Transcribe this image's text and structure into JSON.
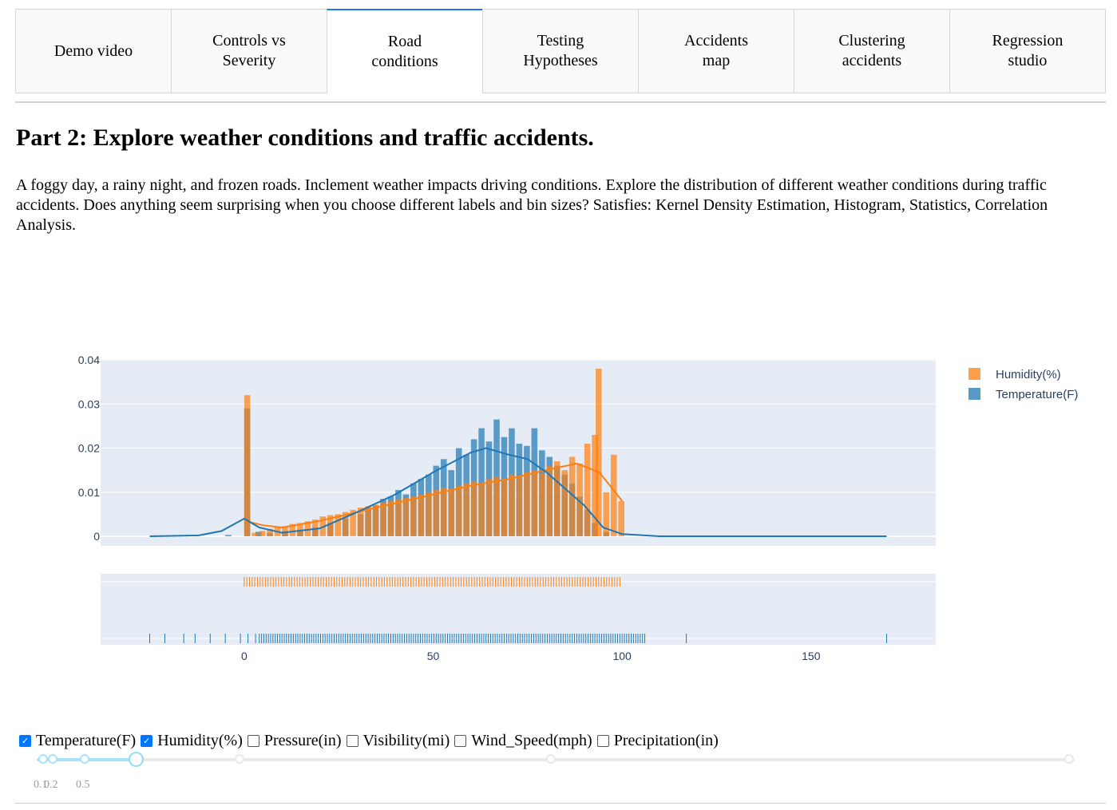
{
  "tabs": [
    {
      "label": "Demo video",
      "active": false
    },
    {
      "label": "Controls vs\nSeverity",
      "active": false
    },
    {
      "label": "Road\nconditions",
      "active": true
    },
    {
      "label": "Testing\nHypotheses",
      "active": false
    },
    {
      "label": "Accidents\nmap",
      "active": false
    },
    {
      "label": "Clustering\naccidents",
      "active": false
    },
    {
      "label": "Regression\nstudio",
      "active": false
    }
  ],
  "heading": "Part 2: Explore weather conditions and traffic accidents.",
  "description": "A foggy day, a rainy night, and frozen roads. Inclement weather impacts driving conditions. Explore the distribution of different weather conditions during traffic accidents. Does anything seem surprising when you choose different labels and bin sizes? Satisfies: Kernel Density Estimation, Histogram, Statistics, Correlation Analysis.",
  "checkboxes": [
    {
      "label": "Temperature(F)",
      "checked": true
    },
    {
      "label": "Humidity(%)",
      "checked": true
    },
    {
      "label": "Pressure(in)",
      "checked": false
    },
    {
      "label": "Visibility(mi)",
      "checked": false
    },
    {
      "label": "Wind_Speed(mph)",
      "checked": false
    },
    {
      "label": "Precipitation(in)",
      "checked": false
    }
  ],
  "slider": {
    "selected_value": 0.5,
    "mark_labels": [
      "0.1",
      "0.2",
      "0.5"
    ]
  },
  "colors": {
    "humidity": "#ff7f0e",
    "temperature": "#1f77b4",
    "plot_bg": "#e5ecf6",
    "active_tab": "#1975fa"
  },
  "chart_data": {
    "type": "histogram",
    "legend": [
      "Humidity(%)",
      "Temperature(F)"
    ],
    "legend_position": "top-right",
    "xticks": [
      0,
      50,
      100,
      150
    ],
    "yticks": [
      "0",
      "0.01",
      "0.02",
      "0.03",
      "0.04"
    ],
    "xlim": [
      -38,
      183
    ],
    "ylim": [
      0,
      0.04
    ],
    "grid": true,
    "histnorm": "probability density",
    "bin_size": 0.5,
    "series": [
      {
        "name": "Humidity(%)",
        "color": "#ff7f0e",
        "bars": [
          [
            0,
            0.032
          ],
          [
            2,
            0.0008
          ],
          [
            4,
            0.0012
          ],
          [
            6,
            0.0017
          ],
          [
            8,
            0.002
          ],
          [
            10,
            0.0023
          ],
          [
            12,
            0.0028
          ],
          [
            14,
            0.003
          ],
          [
            16,
            0.0034
          ],
          [
            18,
            0.0038
          ],
          [
            20,
            0.0045
          ],
          [
            22,
            0.0048
          ],
          [
            24,
            0.005
          ],
          [
            26,
            0.0055
          ],
          [
            28,
            0.006
          ],
          [
            30,
            0.0065
          ],
          [
            32,
            0.0068
          ],
          [
            34,
            0.0072
          ],
          [
            36,
            0.0076
          ],
          [
            38,
            0.008
          ],
          [
            40,
            0.0084
          ],
          [
            42,
            0.0088
          ],
          [
            44,
            0.009
          ],
          [
            46,
            0.0095
          ],
          [
            48,
            0.01
          ],
          [
            50,
            0.0105
          ],
          [
            52,
            0.011
          ],
          [
            54,
            0.0108
          ],
          [
            56,
            0.0115
          ],
          [
            58,
            0.012
          ],
          [
            60,
            0.0125
          ],
          [
            62,
            0.012
          ],
          [
            64,
            0.013
          ],
          [
            66,
            0.0135
          ],
          [
            68,
            0.0128
          ],
          [
            70,
            0.014
          ],
          [
            72,
            0.0138
          ],
          [
            74,
            0.0145
          ],
          [
            76,
            0.015
          ],
          [
            78,
            0.0142
          ],
          [
            80,
            0.016
          ],
          [
            82,
            0.017
          ],
          [
            84,
            0.015
          ],
          [
            86,
            0.018
          ],
          [
            88,
            0.0165
          ],
          [
            90,
            0.021
          ],
          [
            92,
            0.023
          ],
          [
            93,
            0.038
          ],
          [
            95,
            0.01
          ],
          [
            97,
            0.0185
          ],
          [
            99,
            0.008
          ]
        ],
        "kde": [
          [
            0,
            0.0035
          ],
          [
            5,
            0.0025
          ],
          [
            10,
            0.002
          ],
          [
            20,
            0.0035
          ],
          [
            30,
            0.0055
          ],
          [
            40,
            0.0075
          ],
          [
            50,
            0.0095
          ],
          [
            60,
            0.0115
          ],
          [
            70,
            0.013
          ],
          [
            80,
            0.015
          ],
          [
            88,
            0.0165
          ],
          [
            94,
            0.0145
          ],
          [
            100,
            0.008
          ]
        ]
      },
      {
        "name": "Temperature(F)",
        "color": "#1f77b4",
        "bars": [
          [
            -5,
            0.0003
          ],
          [
            0,
            0.029
          ],
          [
            3,
            0.001
          ],
          [
            6,
            0.0008
          ],
          [
            10,
            0.0012
          ],
          [
            14,
            0.0015
          ],
          [
            18,
            0.002
          ],
          [
            22,
            0.003
          ],
          [
            26,
            0.004
          ],
          [
            30,
            0.005
          ],
          [
            32,
            0.0065
          ],
          [
            34,
            0.007
          ],
          [
            36,
            0.0085
          ],
          [
            38,
            0.009
          ],
          [
            40,
            0.0105
          ],
          [
            42,
            0.0095
          ],
          [
            44,
            0.012
          ],
          [
            46,
            0.013
          ],
          [
            48,
            0.014
          ],
          [
            50,
            0.016
          ],
          [
            52,
            0.0175
          ],
          [
            54,
            0.015
          ],
          [
            56,
            0.02
          ],
          [
            58,
            0.0185
          ],
          [
            60,
            0.022
          ],
          [
            62,
            0.0245
          ],
          [
            64,
            0.0215
          ],
          [
            66,
            0.0265
          ],
          [
            68,
            0.0225
          ],
          [
            70,
            0.0245
          ],
          [
            72,
            0.021
          ],
          [
            74,
            0.0205
          ],
          [
            76,
            0.0245
          ],
          [
            78,
            0.0195
          ],
          [
            80,
            0.018
          ],
          [
            82,
            0.016
          ],
          [
            84,
            0.014
          ],
          [
            86,
            0.012
          ],
          [
            88,
            0.009
          ],
          [
            90,
            0.006
          ],
          [
            92,
            0.003
          ],
          [
            95,
            0.001
          ]
        ],
        "kde": [
          [
            -25,
            0
          ],
          [
            -12,
            0.0002
          ],
          [
            -6,
            0.0012
          ],
          [
            0,
            0.004
          ],
          [
            4,
            0.002
          ],
          [
            10,
            0.0008
          ],
          [
            20,
            0.0018
          ],
          [
            30,
            0.0055
          ],
          [
            40,
            0.0095
          ],
          [
            50,
            0.0145
          ],
          [
            60,
            0.019
          ],
          [
            64,
            0.02
          ],
          [
            70,
            0.0185
          ],
          [
            75,
            0.0175
          ],
          [
            80,
            0.0145
          ],
          [
            90,
            0.007
          ],
          [
            95,
            0.002
          ],
          [
            100,
            0.0005
          ],
          [
            110,
            0
          ],
          [
            170,
            0
          ]
        ]
      }
    ],
    "rug_humidity_range": [
      0,
      100
    ],
    "rug_temperature_range": [
      -25,
      170
    ]
  }
}
